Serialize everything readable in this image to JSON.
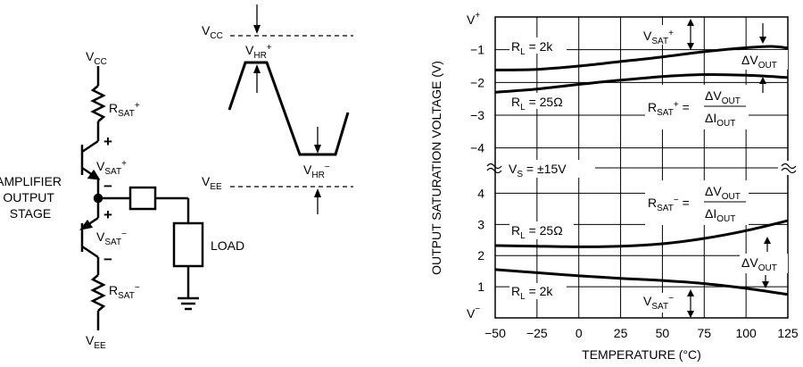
{
  "circuit": {
    "vcc_main": "V",
    "vcc_sub": "CC",
    "vee_main": "V",
    "vee_sub": "EE",
    "rsat_plus_main": "R",
    "rsat_plus_sub": "SAT",
    "rsat_plus_sup": "+",
    "rsat_minus_main": "R",
    "rsat_minus_sub": "SAT",
    "rsat_minus_sup": "−",
    "vsat_plus_main": "V",
    "vsat_plus_sub": "SAT",
    "vsat_plus_sup": "+",
    "vsat_minus_main": "V",
    "vsat_minus_sub": "SAT",
    "vsat_minus_sup": "−",
    "plus_sign": "+",
    "minus_sign": "−",
    "stage_label": [
      "AMPLIFIER",
      "OUTPUT",
      "STAGE"
    ],
    "load_label": "LOAD"
  },
  "waveform": {
    "vcc_main": "V",
    "vcc_sub": "CC",
    "vee_main": "V",
    "vee_sub": "EE",
    "vhr_plus_main": "V",
    "vhr_plus_sub": "HR",
    "vhr_plus_sup": "+",
    "vhr_minus_main": "V",
    "vhr_minus_sub": "HR",
    "vhr_minus_sup": "−"
  },
  "chart_data": {
    "type": "line",
    "xlabel": "TEMPERATURE (°C)",
    "ylabel": "OUTPUT SATURATION VOLTAGE (V)",
    "xlim": [
      -50,
      125
    ],
    "x_ticks": [
      "−50",
      "−25",
      "0",
      "25",
      "50",
      "75",
      "100",
      "125"
    ],
    "x_tick_values": [
      -50,
      -25,
      0,
      25,
      50,
      75,
      100,
      125
    ],
    "upper_ticks": [
      {
        "label": "V+",
        "value": 0
      },
      {
        "label": "−1",
        "value": -1
      },
      {
        "label": "−2",
        "value": -2
      },
      {
        "label": "−3",
        "value": -3
      },
      {
        "label": "−4",
        "value": -4
      }
    ],
    "lower_ticks": [
      {
        "label": "4",
        "value": 4
      },
      {
        "label": "3",
        "value": 3
      },
      {
        "label": "2",
        "value": 2
      },
      {
        "label": "1",
        "value": 1
      },
      {
        "label": "V−",
        "value": 0
      }
    ],
    "upper_ylim": [
      -4.5,
      0
    ],
    "lower_ylim": [
      0,
      4.7
    ],
    "break_label": "V_S = ±15V",
    "grid": true,
    "series": [
      {
        "name": "RL = 2k",
        "panel": "upper",
        "x": [
          -50,
          -25,
          0,
          25,
          50,
          75,
          100,
          115,
          125
        ],
        "y": [
          -1.62,
          -1.6,
          -1.5,
          -1.36,
          -1.22,
          -1.06,
          -0.94,
          -0.9,
          -0.95
        ]
      },
      {
        "name": "RL = 25Ω",
        "panel": "upper",
        "x": [
          -50,
          -25,
          0,
          25,
          50,
          75,
          100,
          125
        ],
        "y": [
          -2.3,
          -2.2,
          -2.06,
          -1.93,
          -1.82,
          -1.76,
          -1.78,
          -1.85
        ]
      },
      {
        "name": "RL = 25Ω",
        "panel": "lower",
        "x": [
          -50,
          -25,
          0,
          25,
          50,
          75,
          100,
          125
        ],
        "y": [
          2.32,
          2.3,
          2.28,
          2.3,
          2.38,
          2.55,
          2.8,
          3.12
        ]
      },
      {
        "name": "RL = 2k",
        "panel": "lower",
        "x": [
          -50,
          -25,
          0,
          25,
          50,
          75,
          100,
          125
        ],
        "y": [
          1.55,
          1.45,
          1.35,
          1.27,
          1.2,
          1.1,
          0.95,
          0.75
        ]
      }
    ],
    "annotations": {
      "rl_2k_upper": "R_L = 2k",
      "rl_25_upper": "R_L = 25Ω",
      "rl_25_lower": "R_L = 25Ω",
      "rl_2k_lower": "R_L = 2k",
      "vsat_plus": "V_SAT+",
      "vsat_minus": "V_SAT−",
      "dvout_upper": "ΔV_OUT",
      "dvout_lower": "ΔV_OUT",
      "rsat_plus_eq": "R_SAT+ = ΔV_OUT / ΔI_OUT",
      "rsat_minus_eq": "R_SAT− = ΔV_OUT / ΔI_OUT"
    }
  }
}
